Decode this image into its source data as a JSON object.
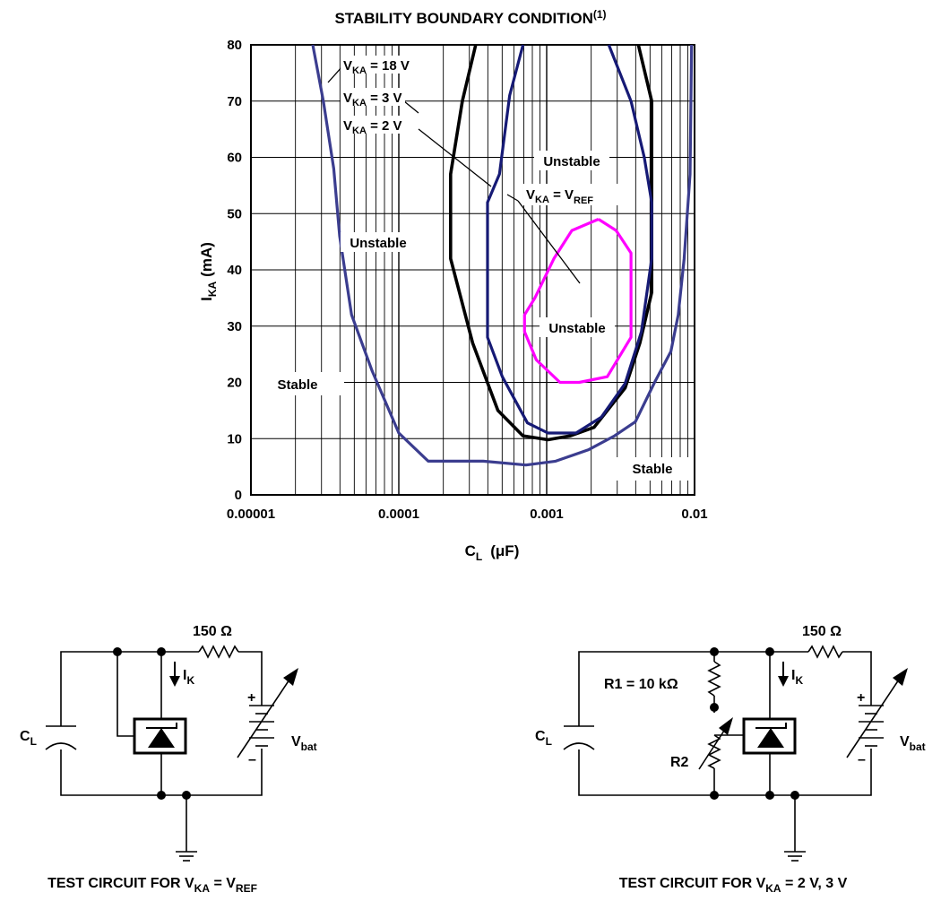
{
  "chart_data": {
    "type": "line",
    "title": "STABILITY BOUNDARY CONDITION",
    "title_note": "(1)",
    "xlabel": {
      "main": "C",
      "sub": "L",
      "unit": "(μF)"
    },
    "ylabel": {
      "main": "I",
      "sub": "KA",
      "unit": "(mA)"
    },
    "x_scale": "log",
    "xlim": [
      1e-05,
      0.01
    ],
    "ylim": [
      0,
      80
    ],
    "x_ticks": [
      {
        "value": 1e-05,
        "label": "0.00001"
      },
      {
        "value": 0.0001,
        "label": "0.0001"
      },
      {
        "value": 0.001,
        "label": "0.001"
      },
      {
        "value": 0.01,
        "label": "0.01"
      }
    ],
    "y_ticks": [
      {
        "value": 0,
        "label": "0"
      },
      {
        "value": 10,
        "label": "10"
      },
      {
        "value": 20,
        "label": "20"
      },
      {
        "value": 30,
        "label": "30"
      },
      {
        "value": 40,
        "label": "40"
      },
      {
        "value": 50,
        "label": "50"
      },
      {
        "value": 60,
        "label": "60"
      },
      {
        "value": 70,
        "label": "70"
      },
      {
        "value": 80,
        "label": "80"
      }
    ],
    "grid": true,
    "series": [
      {
        "key": "vka18",
        "color": "#3b3d8f",
        "width": 3.2,
        "points": [
          [
            2.62e-05,
            80
          ],
          [
            3.09e-05,
            70
          ],
          [
            3.63e-05,
            58
          ],
          [
            3.98e-05,
            46
          ],
          [
            4.79e-05,
            32
          ],
          [
            6.61e-05,
            22
          ],
          [
            0.0001,
            11
          ],
          [
            0.000158,
            6
          ],
          [
            0.000372,
            6
          ],
          [
            0.000724,
            5.3
          ],
          [
            0.00115,
            6
          ],
          [
            0.00191,
            8
          ],
          [
            0.00288,
            10.5
          ],
          [
            0.00398,
            13
          ],
          [
            0.00537,
            20
          ],
          [
            0.00692,
            25.5
          ],
          [
            0.00776,
            32
          ],
          [
            0.00851,
            42
          ],
          [
            0.00933,
            57
          ],
          [
            0.00955,
            80
          ]
        ]
      },
      {
        "key": "vka2",
        "color": "#000000",
        "width": 3.6,
        "points": [
          [
            0.000331,
            80
          ],
          [
            0.000269,
            70
          ],
          [
            0.000224,
            57
          ],
          [
            0.000224,
            42
          ],
          [
            0.000316,
            27
          ],
          [
            0.000468,
            15
          ],
          [
            0.000691,
            10.5
          ],
          [
            0.00102,
            9.8
          ],
          [
            0.00145,
            10.5
          ],
          [
            0.00209,
            12
          ],
          [
            0.00339,
            19
          ],
          [
            0.00427,
            27
          ],
          [
            0.00513,
            36
          ],
          [
            0.00513,
            70
          ],
          [
            0.00417,
            80
          ]
        ]
      },
      {
        "key": "vka3",
        "color": "#161a75",
        "width": 3.2,
        "points": [
          [
            0.000692,
            80
          ],
          [
            0.000562,
            71
          ],
          [
            0.000479,
            57
          ],
          [
            0.000398,
            52
          ],
          [
            0.000398,
            28
          ],
          [
            0.000501,
            21
          ],
          [
            0.000741,
            12.8
          ],
          [
            0.00102,
            11
          ],
          [
            0.00158,
            11
          ],
          [
            0.00234,
            13.8
          ],
          [
            0.00339,
            19.8
          ],
          [
            0.00437,
            29
          ],
          [
            0.00513,
            42
          ],
          [
            0.00513,
            52
          ],
          [
            0.00457,
            60
          ],
          [
            0.00372,
            70
          ],
          [
            0.00263,
            80
          ]
        ]
      },
      {
        "key": "vkaref",
        "color": "#ff00ff",
        "width": 3.2,
        "points": [
          [
            0.00224,
            49
          ],
          [
            0.00148,
            47
          ],
          [
            0.00112,
            42
          ],
          [
            0.000832,
            35
          ],
          [
            0.000708,
            32
          ],
          [
            0.000708,
            29
          ],
          [
            0.000851,
            24
          ],
          [
            0.00123,
            20
          ],
          [
            0.00166,
            20
          ],
          [
            0.00257,
            21
          ],
          [
            0.00372,
            28
          ],
          [
            0.00372,
            43
          ],
          [
            0.00295,
            47
          ],
          [
            0.00224,
            49
          ]
        ]
      }
    ],
    "annotations": [
      {
        "key": "ann18",
        "main": "V",
        "sub": "KA",
        "rest": " = 18 V"
      },
      {
        "key": "ann3",
        "main": "V",
        "sub": "KA",
        "rest": " = 3 V"
      },
      {
        "key": "ann2",
        "main": "V",
        "sub": "KA",
        "rest": " = 2 V"
      },
      {
        "key": "annref",
        "main": "V",
        "sub": "KA",
        "rest": " = V",
        "sub2": "REF"
      }
    ],
    "regions": [
      {
        "key": "unstable-top",
        "text": "Unstable"
      },
      {
        "key": "unstable-left",
        "text": "Unstable"
      },
      {
        "key": "unstable-center",
        "text": "Unstable"
      },
      {
        "key": "stable-left",
        "text": "Stable"
      },
      {
        "key": "stable-right",
        "text": "Stable"
      }
    ]
  },
  "circuits": {
    "left": {
      "caption_main": "TEST CIRCUIT FOR V",
      "caption_sub": "KA",
      "caption_rest": " = V",
      "caption_sub2": "REF",
      "resistor": "150 Ω",
      "current_main": "I",
      "current_sub": "K",
      "cap_main": "C",
      "cap_sub": "L",
      "bat_main": "V",
      "bat_sub": "bat",
      "plus": "+",
      "minus": "–"
    },
    "right": {
      "caption_main": "TEST CIRCUIT FOR V",
      "caption_sub": "KA",
      "caption_rest": " = 2 V, 3 V",
      "resistor": "150 Ω",
      "r1": "R1 = 10 kΩ",
      "r2": "R2",
      "current_main": "I",
      "current_sub": "K",
      "cap_main": "C",
      "cap_sub": "L",
      "bat_main": "V",
      "bat_sub": "bat",
      "plus": "+",
      "minus": "–"
    }
  }
}
